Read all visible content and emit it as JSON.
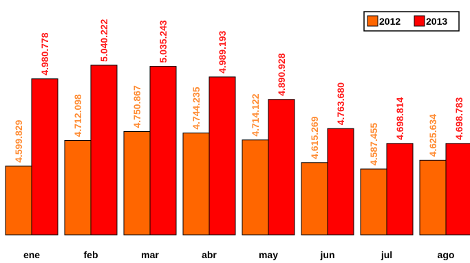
{
  "chart_data": {
    "type": "bar",
    "categories": [
      "ene",
      "feb",
      "mar",
      "abr",
      "may",
      "jun",
      "jul",
      "ago"
    ],
    "series": [
      {
        "name": "2012",
        "values": [
          4599829,
          4712098,
          4750867,
          4744235,
          4714122,
          4615269,
          4587455,
          4625634
        ],
        "labels": [
          "4.599.829",
          "4.712.098",
          "4.750.867",
          "4.744.235",
          "4.714.122",
          "4.615.269",
          "4.587.455",
          "4.625.634"
        ],
        "color": "#ff6600",
        "label_color": "#ff8c33"
      },
      {
        "name": "2013",
        "values": [
          4980778,
          5040222,
          5035243,
          4989193,
          4890928,
          4763680,
          4698814,
          4698783
        ],
        "labels": [
          "4.980.778",
          "5.040.222",
          "5.035.243",
          "4.989.193",
          "4.890.928",
          "4.763.680",
          "4.698.814",
          "4.698.783"
        ],
        "color": "#ff0000",
        "label_color": "#ff1a1a"
      }
    ],
    "title": "",
    "xlabel": "",
    "ylabel": "",
    "ylim": [
      4300000,
      5100000
    ],
    "grid": false,
    "legend": "top-right"
  }
}
